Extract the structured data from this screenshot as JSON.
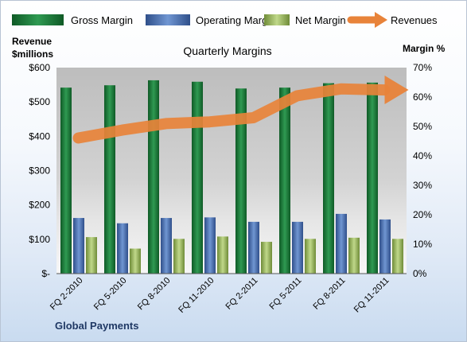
{
  "chart_data": {
    "type": "bar",
    "title": "Quarterly Margins",
    "company": "Global Payments",
    "left_axis": {
      "label_line1": "Revenue",
      "label_line2": "$millions",
      "range": [
        0,
        600
      ],
      "ticks": [
        "$-",
        "$100",
        "$200",
        "$300",
        "$400",
        "$500",
        "$600"
      ]
    },
    "right_axis": {
      "label": "Margin %",
      "range": [
        0,
        70
      ],
      "ticks": [
        "0%",
        "10%",
        "20%",
        "30%",
        "40%",
        "50%",
        "60%",
        "70%"
      ]
    },
    "categories": [
      "FQ 2-2010",
      "FQ 5-2010",
      "FQ 8-2010",
      "FQ 11-2010",
      "FQ 2-2011",
      "FQ 5-2011",
      "FQ 8-2011",
      "FQ 11-2011"
    ],
    "series": [
      {
        "name": "Gross Margin",
        "type": "bar",
        "axis": "right",
        "color": "#1d7a3a",
        "values": [
          63.2,
          64.0,
          65.7,
          65.2,
          62.9,
          63.2,
          64.7,
          64.9
        ]
      },
      {
        "name": "Operating Margin",
        "type": "bar",
        "axis": "right",
        "color": "#4f74b8",
        "values": [
          18.9,
          17.1,
          18.9,
          19.1,
          17.6,
          17.6,
          20.3,
          18.4
        ]
      },
      {
        "name": "Net Margin",
        "type": "bar",
        "axis": "right",
        "color": "#9bbb59",
        "values": [
          12.4,
          8.5,
          11.8,
          12.6,
          10.8,
          11.8,
          12.2,
          11.8
        ]
      },
      {
        "name": "Revenues",
        "type": "line",
        "axis": "left",
        "color": "#e8833a",
        "values": [
          395,
          418,
          437,
          442,
          454,
          518,
          538,
          535
        ]
      }
    ],
    "grid": false,
    "legend": "top"
  }
}
